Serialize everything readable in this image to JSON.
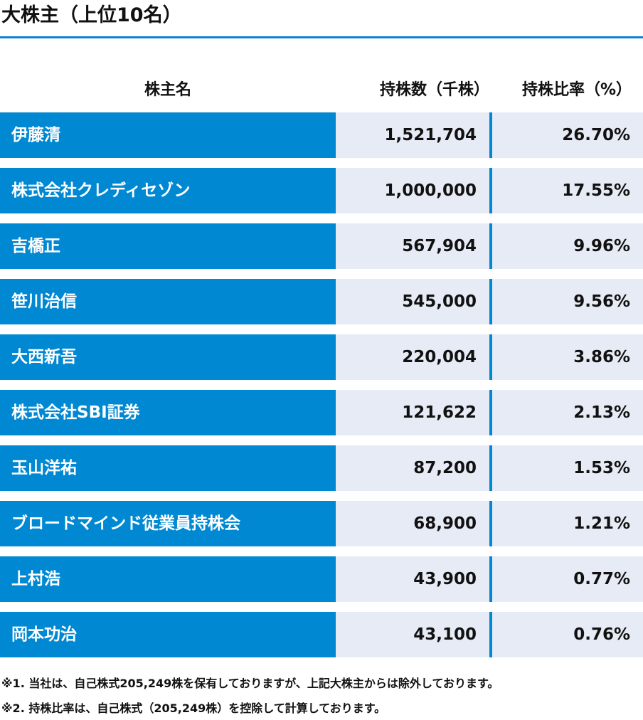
{
  "header": {
    "title": "大株主（上位10名）"
  },
  "table": {
    "columns": [
      "株主名",
      "持株数（千株）",
      "持株比率（%）"
    ],
    "rows": [
      [
        "伊藤清",
        "1,521,704",
        "26.70%"
      ],
      [
        "株式会社クレディセゾン",
        "1,000,000",
        "17.55%"
      ],
      [
        "吉橋正",
        "567,904",
        "9.96%"
      ],
      [
        "笹川治信",
        "545,000",
        "9.56%"
      ],
      [
        "大西新吾",
        "220,004",
        "3.86%"
      ],
      [
        "株式会社SBI証券",
        "121,622",
        "2.13%"
      ],
      [
        "玉山洋祐",
        "87,200",
        "1.53%"
      ],
      [
        "ブロードマインド従業員持株会",
        "68,900",
        "1.21%"
      ],
      [
        "上村浩",
        "43,900",
        "0.77%"
      ],
      [
        "岡本功治",
        "43,100",
        "0.76%"
      ]
    ]
  },
  "notes": [
    "※1. 当社は、自己株式205,249株を保有しておりますが、上記大株主からは除外しております。",
    "※2. 持株比率は、自己株式（205,249株）を控除して計算しております。"
  ]
}
